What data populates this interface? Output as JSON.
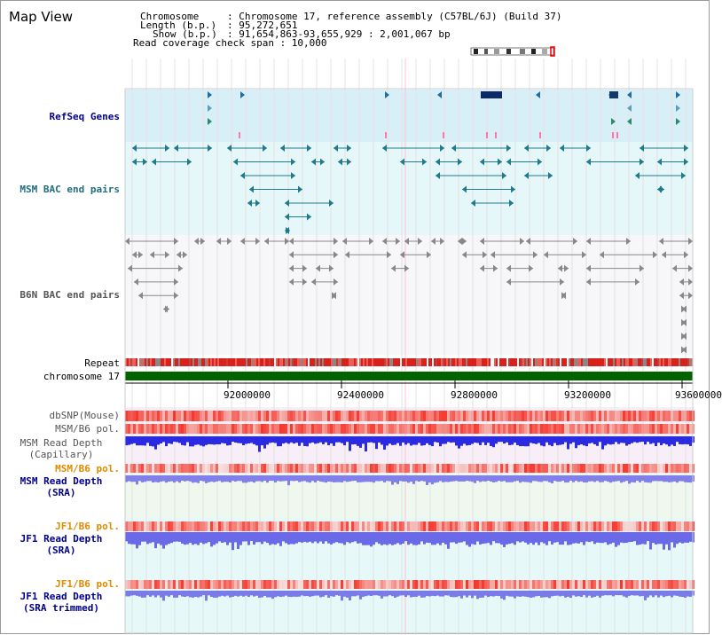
{
  "title": "Map View",
  "info": {
    "chromosome_key": "Chromosome",
    "chromosome_val": ": Chromosome 17, reference assembly (C57BL/6J) (Build 37)",
    "length_key": "Length (b.p.)",
    "length_val": ": 95,272,651",
    "show_key": "Show (b.p.)",
    "show_val": ": 91,654,863-93,655,929 : 2,001,067 bp",
    "read_coverage": "Read coverage check span : 10,000"
  },
  "tracks": {
    "refseq": "RefSeq Genes",
    "msm_bac": "MSM BAC end pairs",
    "b6n_bac": "B6N BAC end pairs",
    "repeat": "Repeat",
    "chromosome": "chromosome 17",
    "dbsnp": "dbSNP(Mouse)",
    "msm_b6_pol_1": "MSM/B6 pol.",
    "msm_read_depth_cap_1": "MSM Read Depth",
    "msm_read_depth_cap_2": "(Capillary)",
    "msm_b6_pol_2": "MSM/B6 pol.",
    "msm_read_depth_sra_1": "MSM Read Depth",
    "msm_read_depth_sra_2": "(SRA)",
    "jf1_b6_pol_1": "JF1/B6 pol.",
    "jf1_read_depth_sra_1": "JF1 Read Depth",
    "jf1_read_depth_sra_2": "(SRA)",
    "jf1_b6_pol_2": "JF1/B6 pol.",
    "jf1_read_depth_trim_1": "JF1 Read Depth",
    "jf1_read_depth_trim_2": "(SRA trimmed)"
  },
  "axis_ticks": [
    "92000000",
    "92400000",
    "92800000",
    "93200000",
    "93600000"
  ],
  "colors": {
    "navy": "#00008b",
    "teal": "#1f6e7e",
    "orange": "#e08a00",
    "refseq_bg": "#d9eff8",
    "msm_bg": "#e4f6f8",
    "chromosome": "#006400"
  }
}
